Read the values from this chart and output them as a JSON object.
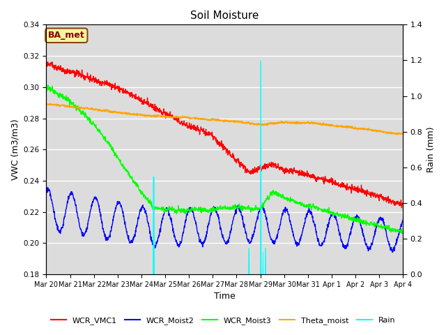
{
  "title": "Soil Moisture",
  "xlabel": "Time",
  "ylabel_left": "VWC (m3/m3)",
  "ylabel_right": "Rain (mm)",
  "ylim_left": [
    0.18,
    0.34
  ],
  "ylim_right": [
    0.0,
    1.4
  ],
  "plot_bg_color": "#dcdcdc",
  "annotation_text": "BA_met",
  "annotation_color": "#8b0000",
  "annotation_bg": "#f5f5a0",
  "annotation_border": "#8b4513",
  "xtick_labels": [
    "Mar 20",
    "Mar 21",
    "Mar 22",
    "Mar 23",
    "Mar 24",
    "Mar 25",
    "Mar 26",
    "Mar 27",
    "Mar 28",
    "Mar 29",
    "Mar 30",
    "Mar 31",
    "Apr 1",
    "Apr 2",
    "Apr 3",
    "Apr 4"
  ],
  "n_points": 1440,
  "days_span": 15.0
}
